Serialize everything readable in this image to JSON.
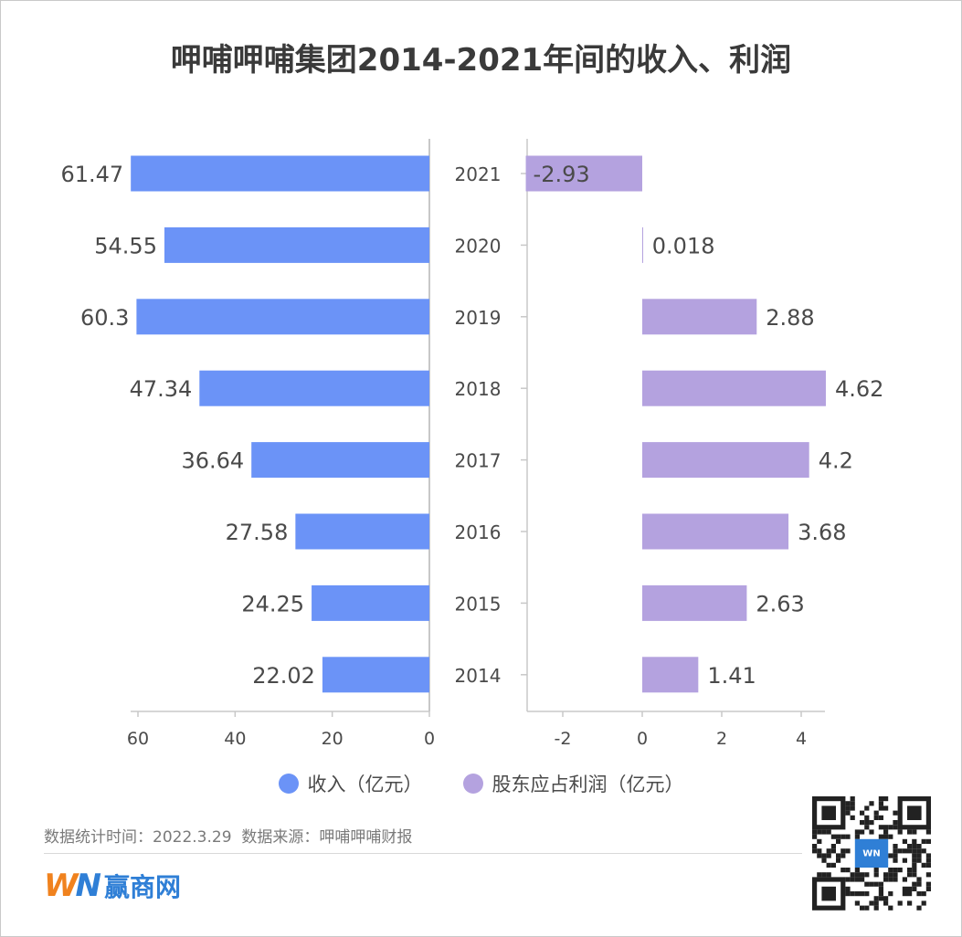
{
  "title": "呷哺呷哺集团2014-2021年间的收入、利润",
  "chart_data": [
    {
      "type": "bar",
      "orientation": "horizontal",
      "categories": [
        "2021",
        "2020",
        "2019",
        "2018",
        "2017",
        "2016",
        "2015",
        "2014"
      ],
      "series": [
        {
          "name": "收入（亿元）",
          "values": [
            61.47,
            54.55,
            60.3,
            47.34,
            36.64,
            27.58,
            24.25,
            22.02
          ],
          "color": "#6b93f7"
        }
      ],
      "data_labels": [
        "61.47",
        "54.55",
        "60.3",
        "47.34",
        "36.64",
        "27.58",
        "24.25",
        "22.02"
      ],
      "xlim": [
        0,
        62
      ],
      "x_reversed": true,
      "xticks": [
        "60",
        "40",
        "20",
        "0"
      ]
    },
    {
      "type": "bar",
      "orientation": "horizontal",
      "categories": [
        "2021",
        "2020",
        "2019",
        "2018",
        "2017",
        "2016",
        "2015",
        "2014"
      ],
      "series": [
        {
          "name": "股东应占利润（亿元）",
          "values": [
            -2.93,
            0.018,
            2.88,
            4.62,
            4.2,
            3.68,
            2.63,
            1.41
          ],
          "color": "#b4a2df"
        }
      ],
      "data_labels": [
        "-2.93",
        "0.018",
        "2.88",
        "4.62",
        "4.2",
        "3.68",
        "2.63",
        "1.41"
      ],
      "xlim": [
        -3,
        4.6
      ],
      "xticks": [
        "-2",
        "0",
        "2",
        "4"
      ]
    }
  ],
  "legend": {
    "items": [
      {
        "label": "收入（亿元）",
        "color": "#6b93f7"
      },
      {
        "label": "股东应占利润（亿元）",
        "color": "#b4a2df"
      }
    ]
  },
  "footer": {
    "text": "数据统计时间：2022.3.29  数据来源：呷哺呷哺财报"
  },
  "logo": {
    "mark_w": "W",
    "mark_n": "N",
    "text": "赢商网"
  },
  "qr": {
    "icon": "qr-code-icon",
    "badge_text": "WN"
  }
}
